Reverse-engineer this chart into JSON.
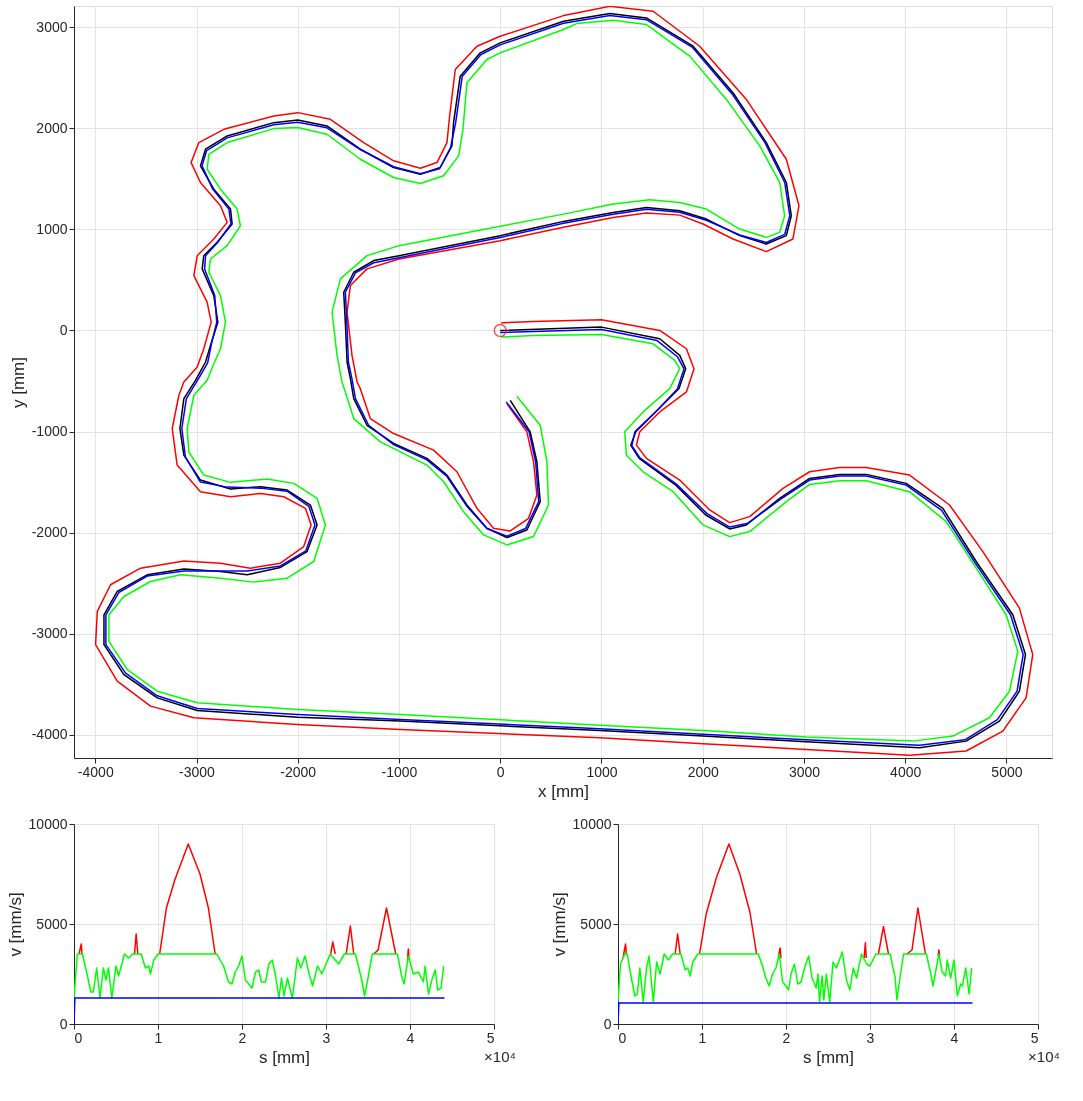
{
  "chart_data": [
    {
      "type": "line",
      "xlabel": "x [mm]",
      "ylabel": "y [mm]",
      "xlim": [
        -4210,
        5450
      ],
      "ylim": [
        -4230,
        3210
      ],
      "xticks": [
        -4000,
        -3000,
        -2000,
        -1000,
        0,
        1000,
        2000,
        3000,
        4000,
        5000
      ],
      "yticks": [
        -4000,
        -3000,
        -2000,
        -1000,
        0,
        1000,
        2000,
        3000
      ],
      "grid": true,
      "series": [
        {
          "color": "#000000",
          "x": [
            0,
            1000,
            1576,
            1773,
            1832,
            1766,
            1569,
            1339,
            1289,
            1372,
            1734,
            2030,
            2266,
            2431,
            2760,
            3056,
            3352,
            3615,
            4010,
            4372,
            4701,
            5063,
            5188,
            5128,
            4931,
            4602,
            4141,
            3023,
            2003,
            984,
            -987,
            -2000,
            -2993,
            -3388,
            -3717,
            -3914,
            -3914,
            -3783,
            -3487,
            -3125,
            -2763,
            -2500,
            -2171,
            -1908,
            -1809,
            -1875,
            -2105,
            -2368,
            -2664,
            -2961,
            -3125,
            -3164,
            -3125,
            -3010,
            -2911,
            -2862,
            -2789,
            -2829,
            -2944,
            -2928,
            -2796,
            -2648,
            -2664,
            -2829,
            -2961,
            -2911,
            -2697,
            -2237,
            -2000,
            -1711,
            -1382,
            -1053,
            -789,
            -592,
            -477,
            -461,
            -395,
            -197,
            0,
            625,
            1082,
            1444,
            1905,
            2299,
            2628,
            2826,
            2875,
            2826,
            2628,
            2365,
            2036,
            1773,
            1444,
            1115,
            625,
            0,
            -1000,
            -1250,
            -1447,
            -1546,
            -1530,
            -1513,
            -1480,
            -1447,
            -1316,
            -1053,
            -724,
            -526,
            -329,
            -132,
            66,
            263,
            395,
            362,
            296,
            99
          ],
          "values": [
            0,
            33,
            -82,
            -247,
            -378,
            -575,
            -772,
            -1003,
            -1135,
            -1266,
            -1530,
            -1826,
            -1964,
            -1924,
            -1661,
            -1464,
            -1424,
            -1424,
            -1513,
            -1760,
            -2286,
            -2813,
            -3207,
            -3569,
            -3865,
            -4063,
            -4128,
            -4069,
            -4013,
            -3957,
            -3865,
            -3826,
            -3760,
            -3635,
            -3405,
            -3109,
            -2813,
            -2582,
            -2418,
            -2359,
            -2385,
            -2418,
            -2345,
            -2188,
            -1924,
            -1727,
            -1579,
            -1546,
            -1569,
            -1480,
            -1234,
            -970,
            -674,
            -493,
            -312,
            -148,
            82,
            345,
            609,
            740,
            872,
            1053,
            1201,
            1398,
            1628,
            1793,
            1924,
            2056,
            2082,
            2023,
            1793,
            1612,
            1546,
            1612,
            1826,
            2056,
            2516,
            2747,
            2845,
            3059,
            3135,
            3092,
            2812,
            2352,
            1859,
            1464,
            1135,
            938,
            855,
            938,
            1102,
            1184,
            1217,
            1168,
            1079,
            938,
            740,
            691,
            576,
            378,
            82,
            -312,
            -477,
            -674,
            -938,
            -1118,
            -1266,
            -1431,
            -1727,
            -1957,
            -2049,
            -1974,
            -1694,
            -1299,
            -1003,
            -691
          ]
        },
        {
          "color": "#ff0000",
          "x": [
            10,
            326,
            1000,
            1576,
            1839,
            1914,
            1839,
            1576,
            1378,
            1345,
            1444,
            1773,
            2069,
            2266,
            2464,
            2793,
            3056,
            3352,
            3615,
            4043,
            4438,
            4767,
            5128,
            5260,
            5194,
            4964,
            4602,
            4043,
            3023,
            2003,
            984,
            -987,
            -2000,
            -3026,
            -3454,
            -3783,
            -3997,
            -3980,
            -3849,
            -3553,
            -3125,
            -2763,
            -2467,
            -2171,
            -1941,
            -1868,
            -1924,
            -2138,
            -2368,
            -2664,
            -2961,
            -3191,
            -3240,
            -3174,
            -3125,
            -2993,
            -2928,
            -2855,
            -2895,
            -3026,
            -2993,
            -2829,
            -2697,
            -2763,
            -2961,
            -3053,
            -2977,
            -2730,
            -2237,
            -2000,
            -1678,
            -1349,
            -1053,
            -789,
            -625,
            -526,
            -500,
            -444,
            -230,
            0,
            625,
            753,
            1082,
            1510,
            1970,
            2431,
            2826,
            2951,
            2891,
            2628,
            2299,
            2003,
            1773,
            1444,
            1115,
            625,
            0,
            -1000,
            -1316,
            -1480,
            -1513,
            -1464,
            -1414,
            -1382,
            -1283,
            -1053,
            -658,
            -428,
            -230,
            -66,
            99,
            280,
            362,
            329,
            263,
            66
          ],
          "values": [
            76,
            89,
            105,
            0,
            -181,
            -378,
            -608,
            -806,
            -1003,
            -1135,
            -1266,
            -1480,
            -1776,
            -1901,
            -1842,
            -1562,
            -1398,
            -1355,
            -1355,
            -1431,
            -1727,
            -2188,
            -2747,
            -3207,
            -3635,
            -3964,
            -4161,
            -4204,
            -4145,
            -4089,
            -4030,
            -3947,
            -3898,
            -3832,
            -3717,
            -3470,
            -3109,
            -2780,
            -2516,
            -2352,
            -2280,
            -2303,
            -2352,
            -2303,
            -2138,
            -1924,
            -1760,
            -1645,
            -1612,
            -1645,
            -1595,
            -1332,
            -970,
            -641,
            -510,
            -362,
            -181,
            82,
            280,
            543,
            740,
            905,
            1069,
            1234,
            1464,
            1661,
            1859,
            1990,
            2122,
            2155,
            2089,
            1859,
            1678,
            1605,
            1661,
            1859,
            2122,
            2582,
            2812,
            2911,
            3115,
            3141,
            3207,
            3158,
            2812,
            2286,
            1694,
            1234,
            905,
            780,
            905,
            1053,
            1141,
            1161,
            1118,
            1020,
            888,
            707,
            609,
            444,
            181,
            -247,
            -510,
            -576,
            -872,
            -1020,
            -1184,
            -1398,
            -1760,
            -1957,
            -1984,
            -1859,
            -1628,
            -1299,
            -1003,
            -724
          ]
        },
        {
          "color": "#00ff00",
          "x": [
            10,
            326,
            1000,
            1510,
            1724,
            1773,
            1674,
            1411,
            1230,
            1246,
            1411,
            1707,
            2003,
            2266,
            2464,
            2826,
            3056,
            3352,
            3615,
            4043,
            4405,
            4701,
            4997,
            5112,
            5030,
            4832,
            4470,
            4075,
            3023,
            2003,
            984,
            -987,
            -2000,
            -2993,
            -3388,
            -3684,
            -3865,
            -3865,
            -3717,
            -3454,
            -3158,
            -2763,
            -2434,
            -2105,
            -1842,
            -1727,
            -1809,
            -2039,
            -2303,
            -2664,
            -2928,
            -3076,
            -3092,
            -3026,
            -2895,
            -2829,
            -2763,
            -2714,
            -2763,
            -2878,
            -2862,
            -2697,
            -2566,
            -2599,
            -2763,
            -2895,
            -2878,
            -2697,
            -2237,
            -2000,
            -1711,
            -1382,
            -1053,
            -789,
            -559,
            -411,
            -368,
            -329,
            -132,
            0,
            625,
            753,
            1115,
            1444,
            1872,
            2234,
            2563,
            2760,
            2809,
            2760,
            2628,
            2365,
            2036,
            1773,
            1477,
            1115,
            625,
            0,
            -1000,
            -1316,
            -1579,
            -1661,
            -1612,
            -1563,
            -1530,
            -1447,
            -1184,
            -724,
            -559,
            -362,
            -164,
            66,
            329,
            477,
            461,
            395,
            164
          ],
          "values": [
            -66,
            -49,
            -39,
            -132,
            -296,
            -378,
            -576,
            -806,
            -1003,
            -1234,
            -1398,
            -1595,
            -1924,
            -2040,
            -1990,
            -1694,
            -1523,
            -1487,
            -1487,
            -1595,
            -1891,
            -2352,
            -2813,
            -3174,
            -3569,
            -3832,
            -4013,
            -4063,
            -4023,
            -3957,
            -3905,
            -3799,
            -3750,
            -3684,
            -3569,
            -3355,
            -3076,
            -2813,
            -2632,
            -2484,
            -2418,
            -2451,
            -2490,
            -2451,
            -2286,
            -1924,
            -1661,
            -1513,
            -1470,
            -1503,
            -1431,
            -1201,
            -970,
            -641,
            -493,
            -329,
            -181,
            82,
            345,
            576,
            707,
            839,
            1036,
            1201,
            1398,
            1595,
            1743,
            1859,
            1997,
            2007,
            1941,
            1694,
            1513,
            1454,
            1530,
            1727,
            1990,
            2451,
            2681,
            2747,
            2977,
            3036,
            3069,
            3026,
            2714,
            2286,
            1826,
            1464,
            1135,
            970,
            921,
            1003,
            1201,
            1266,
            1293,
            1250,
            1151,
            1030,
            839,
            740,
            510,
            181,
            -247,
            -510,
            -609,
            -872,
            -1102,
            -1332,
            -1497,
            -1793,
            -2023,
            -2122,
            -2039,
            -1727,
            -1299,
            -938,
            -651
          ]
        },
        {
          "color": "#0000ff",
          "x": [
            0,
            1000,
            1550,
            1750,
            1815,
            1750,
            1560,
            1330,
            1300,
            1380,
            1740,
            2040,
            2266,
            2440,
            2770,
            3056,
            3352,
            3615,
            4010,
            4360,
            4690,
            5040,
            5165,
            5105,
            4910,
            4590,
            4141,
            3023,
            2003,
            984,
            -987,
            -2000,
            -2993,
            -3388,
            -3700,
            -3895,
            -3895,
            -3765,
            -3487,
            -3125,
            -2763,
            -2500,
            -2171,
            -1920,
            -1830,
            -1890,
            -2105,
            -2368,
            -2700,
            -2961,
            -3110,
            -3145,
            -3100,
            -2990,
            -2890,
            -2850,
            -2800,
            -2820,
            -2920,
            -2910,
            -2790,
            -2660,
            -2680,
            -2840,
            -2945,
            -2900,
            -2697,
            -2237,
            -2000,
            -1711,
            -1382,
            -1053,
            -789,
            -600,
            -490,
            -440,
            -375,
            -190,
            0,
            625,
            1082,
            1444,
            1900,
            2290,
            2615,
            2810,
            2860,
            2810,
            2628,
            2365,
            2036,
            1773,
            1444,
            1115,
            625,
            0,
            -1000,
            -1250,
            -1430,
            -1530,
            -1515,
            -1500,
            -1465,
            -1430,
            -1300,
            -1053,
            -724,
            -526,
            -329,
            -132,
            66,
            250,
            380,
            350,
            285,
            59
          ],
          "values": [
            -20,
            10,
            -100,
            -260,
            -380,
            -580,
            -780,
            -1003,
            -1140,
            -1260,
            -1520,
            -1810,
            -1945,
            -1910,
            -1670,
            -1480,
            -1440,
            -1440,
            -1530,
            -1780,
            -2300,
            -2813,
            -3207,
            -3569,
            -3850,
            -4050,
            -4105,
            -4050,
            -3995,
            -3940,
            -3850,
            -3800,
            -3740,
            -3615,
            -3390,
            -3109,
            -2813,
            -2590,
            -2430,
            -2380,
            -2380,
            -2380,
            -2330,
            -2180,
            -1924,
            -1740,
            -1590,
            -1560,
            -1550,
            -1500,
            -1250,
            -970,
            -674,
            -493,
            -320,
            -120,
            82,
            345,
            609,
            740,
            872,
            1053,
            1201,
            1398,
            1628,
            1780,
            1905,
            2035,
            2060,
            2005,
            1790,
            1620,
            1550,
            1600,
            1810,
            2056,
            2516,
            2730,
            2825,
            3040,
            3115,
            3075,
            2800,
            2340,
            1859,
            1464,
            1135,
            950,
            870,
            945,
            1090,
            1170,
            1200,
            1150,
            1060,
            920,
            720,
            670,
            570,
            378,
            82,
            -312,
            -477,
            -674,
            -938,
            -1130,
            -1280,
            -1445,
            -1740,
            -1960,
            -2035,
            -1960,
            -1694,
            -1299,
            -1003,
            -707
          ]
        },
        {
          "type": "scatter",
          "marker": "circle",
          "color": "#ff0000",
          "x": [
            0
          ],
          "values": [
            0
          ]
        }
      ]
    },
    {
      "type": "line",
      "xlabel": "s [mm]",
      "ylabel": "v [mm/s]",
      "xlim": [
        0,
        5
      ],
      "ylim": [
        0,
        10000
      ],
      "xticks": [
        0,
        1,
        2,
        3,
        4,
        5
      ],
      "yticks": [
        0,
        5000,
        10000
      ],
      "grid": true,
      "annotations": [
        "×10⁴"
      ],
      "series": [
        {
          "color": "#ff0000",
          "x": [
            0.06,
            0.087,
            0.095,
            0.4,
            0.72,
            0.74,
            0.76,
            0.9,
            1.02,
            1.1,
            1.2,
            1.36,
            1.5,
            1.6,
            1.68,
            2.5,
            3.055,
            3.08,
            3.11,
            3.2,
            3.24,
            3.29,
            3.33,
            3.45,
            3.57,
            3.62,
            3.72,
            3.83,
            3.9,
            3.97,
            3.98,
            3.99
          ],
          "values": [
            3500,
            4000,
            3500,
            null,
            3500,
            4500,
            3500,
            null,
            3500,
            5800,
            7200,
            9000,
            7500,
            5800,
            3500,
            null,
            3480,
            4100,
            3500,
            null,
            3500,
            4900,
            3500,
            null,
            3500,
            3700,
            5800,
            3500,
            null,
            3200,
            3750,
            3200
          ]
        },
        {
          "color": "#00ff00",
          "x": [
            0,
            0.04,
            0.1,
            0.15,
            0.2,
            0.23,
            0.27,
            0.31,
            0.35,
            0.38,
            0.41,
            0.45,
            0.5,
            0.53,
            0.57,
            0.6,
            0.65,
            0.7,
            0.8,
            0.85,
            0.89,
            0.91,
            0.95,
            1,
            1.7,
            1.78,
            1.84,
            1.88,
            1.92,
            1.96,
            2,
            2.04,
            2.08,
            2.12,
            2.16,
            2.2,
            2.23,
            2.28,
            2.32,
            2.36,
            2.4,
            2.44,
            2.47,
            2.5,
            2.54,
            2.6,
            2.66,
            2.7,
            2.75,
            2.8,
            2.84,
            2.9,
            2.95,
            3,
            3.05,
            3.15,
            3.22,
            3.35,
            3.42,
            3.46,
            3.5,
            3.55,
            3.85,
            3.9,
            3.93,
            3.98,
            4.04,
            4.1,
            4.16,
            4.18,
            4.22,
            4.26,
            4.3,
            4.33,
            4.37,
            4.4
          ],
          "values": [
            1300,
            3500,
            3500,
            2600,
            1600,
            1600,
            2800,
            1300,
            2800,
            2200,
            2800,
            1300,
            2900,
            2400,
            3000,
            3500,
            3300,
            3500,
            3500,
            2800,
            2900,
            2500,
            3200,
            3500,
            3500,
            2900,
            2100,
            2000,
            2600,
            2900,
            3400,
            2200,
            2000,
            1800,
            2600,
            2700,
            2100,
            2100,
            3000,
            3200,
            2400,
            1300,
            2300,
            1400,
            2300,
            1300,
            3300,
            2800,
            3400,
            2500,
            1900,
            2900,
            2500,
            3000,
            3500,
            3000,
            3500,
            3500,
            2300,
            1400,
            2300,
            3500,
            3500,
            2400,
            2000,
            3400,
            2500,
            2600,
            2100,
            2900,
            1500,
            2200,
            2700,
            1700,
            1800,
            2900
          ]
        },
        {
          "color": "#0000ff",
          "x": [
            0,
            0.01,
            4.41
          ],
          "values": [
            0,
            1300,
            1300
          ]
        }
      ]
    },
    {
      "type": "line",
      "xlabel": "s [mm]",
      "ylabel": "v [mm/s]",
      "xlim": [
        0,
        5
      ],
      "ylim": [
        0,
        10000
      ],
      "xticks": [
        0,
        1,
        2,
        3,
        4,
        5
      ],
      "yticks": [
        0,
        5000,
        10000
      ],
      "grid": true,
      "annotations": [
        "×10⁴"
      ],
      "series": [
        {
          "color": "#ff0000",
          "x": [
            0.06,
            0.09,
            0.1,
            0.4,
            0.68,
            0.71,
            0.74,
            0.85,
            0.97,
            1.05,
            1.17,
            1.32,
            1.45,
            1.57,
            1.65,
            1.8,
            1.91,
            1.93,
            1.94,
            2.5,
            2.93,
            2.945,
            2.955,
            3.05,
            3.1,
            3.16,
            3.22,
            3.3,
            3.44,
            3.5,
            3.57,
            3.66,
            3.75,
            3.81,
            3.82,
            3.83
          ],
          "values": [
            3300,
            4000,
            3500,
            null,
            3500,
            4500,
            3500,
            null,
            3500,
            5500,
            7300,
            9000,
            7500,
            5600,
            3500,
            null,
            3400,
            3800,
            3300,
            null,
            3300,
            4060,
            3300,
            null,
            3500,
            4870,
            3500,
            null,
            3500,
            3700,
            5800,
            3500,
            null,
            3400,
            3700,
            3400
          ]
        },
        {
          "color": "#00ff00",
          "x": [
            0,
            0.03,
            0.08,
            0.11,
            0.15,
            0.2,
            0.23,
            0.26,
            0.3,
            0.34,
            0.37,
            0.42,
            0.46,
            0.5,
            0.55,
            0.6,
            0.65,
            0.75,
            0.8,
            0.83,
            0.86,
            0.89,
            0.95,
            1.67,
            1.72,
            1.76,
            1.8,
            1.84,
            1.88,
            1.92,
            1.96,
            2,
            2.03,
            2.06,
            2.1,
            2.14,
            2.18,
            2.22,
            2.27,
            2.31,
            2.36,
            2.38,
            2.4,
            2.43,
            2.45,
            2.48,
            2.52,
            2.56,
            2.6,
            2.67,
            2.72,
            2.76,
            2.8,
            2.84,
            2.9,
            2.96,
            3,
            3.07,
            3.24,
            3.3,
            3.32,
            3.36,
            3.4,
            3.67,
            3.72,
            3.75,
            3.82,
            3.86,
            3.9,
            3.92,
            3.96,
            4,
            4.04,
            4.08,
            4.1,
            4.14,
            4.18,
            4.21
          ],
          "values": [
            1100,
            3000,
            3500,
            3500,
            2500,
            1400,
            1500,
            2800,
            1100,
            2800,
            3400,
            1100,
            3100,
            2500,
            3500,
            3200,
            3500,
            3500,
            2700,
            2800,
            2400,
            3100,
            3500,
            3500,
            2900,
            2300,
            1900,
            2500,
            2800,
            3500,
            2100,
            1900,
            1700,
            2500,
            3000,
            2000,
            2100,
            2800,
            3400,
            2300,
            1800,
            2500,
            1100,
            2400,
            1200,
            2500,
            1100,
            3100,
            2800,
            3600,
            2200,
            1700,
            2800,
            2300,
            3500,
            3000,
            2900,
            3500,
            3500,
            2300,
            1200,
            2400,
            3500,
            3500,
            2600,
            1900,
            3500,
            2600,
            2400,
            3200,
            2300,
            3200,
            1400,
            2000,
            1900,
            2800,
            1500,
            2800
          ]
        },
        {
          "color": "#0000ff",
          "x": [
            0,
            0.01,
            4.22
          ],
          "values": [
            0,
            1050,
            1050
          ]
        }
      ]
    }
  ]
}
